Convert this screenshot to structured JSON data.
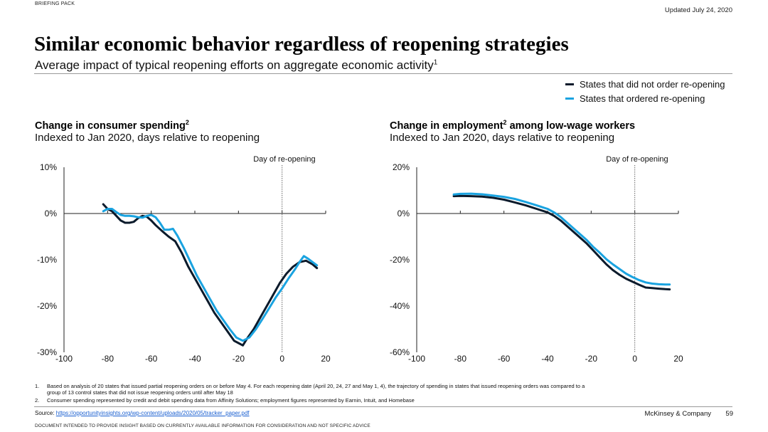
{
  "header": {
    "top_mark": "BRIEFING PACK",
    "updated": "Updated July 24, 2020",
    "title": "Similar economic behavior regardless of reopening strategies",
    "subtitle": "Average impact of typical reopening efforts on aggregate economic activity",
    "subtitle_note": "1"
  },
  "legend": {
    "items": [
      {
        "label": "States that did not order re-opening",
        "color": "#0b1a2b"
      },
      {
        "label": "States that ordered re-opening",
        "color": "#1aa3e0"
      }
    ]
  },
  "chart_data": [
    {
      "type": "line",
      "title": "Change in consumer spending",
      "title_note": "2",
      "subtitle": "Indexed to Jan 2020, days relative to reopening",
      "annotation": "Day of re-opening",
      "annotation_x": 0,
      "xlim": [
        -100,
        20
      ],
      "ylim": [
        -30,
        10
      ],
      "x_ticks": [
        -100,
        -80,
        -60,
        -40,
        -20,
        0,
        20
      ],
      "x_tick_labels": [
        "-100",
        "-80",
        "-60",
        "-40",
        "-20",
        "0",
        "20"
      ],
      "y_ticks": [
        10,
        0,
        -10,
        -20,
        -30
      ],
      "y_tick_labels": [
        "10%",
        "0%",
        "-10%",
        "-20%",
        "-30%"
      ],
      "series": [
        {
          "name": "States that did not order re-opening",
          "color": "#0b1a2b",
          "points": [
            [
              -82,
              2
            ],
            [
              -80,
              1
            ],
            [
              -78,
              0.5
            ],
            [
              -76,
              -0.5
            ],
            [
              -74,
              -1.5
            ],
            [
              -72,
              -2
            ],
            [
              -70,
              -2
            ],
            [
              -68,
              -1.8
            ],
            [
              -66,
              -1
            ],
            [
              -64,
              -0.5
            ],
            [
              -62,
              -0.7
            ],
            [
              -60,
              -1.5
            ],
            [
              -58,
              -2.5
            ],
            [
              -55,
              -3.8
            ],
            [
              -52,
              -5
            ],
            [
              -49,
              -6
            ],
            [
              -46,
              -8.5
            ],
            [
              -43,
              -11.5
            ],
            [
              -40,
              -14
            ],
            [
              -37,
              -16.5
            ],
            [
              -34,
              -19
            ],
            [
              -31,
              -21.5
            ],
            [
              -28,
              -23.5
            ],
            [
              -25,
              -25.5
            ],
            [
              -22,
              -27.5
            ],
            [
              -20,
              -28
            ],
            [
              -18,
              -28.5
            ],
            [
              -16,
              -27
            ],
            [
              -13,
              -25
            ],
            [
              -10,
              -22.5
            ],
            [
              -7,
              -20
            ],
            [
              -4,
              -17.5
            ],
            [
              -1,
              -15
            ],
            [
              2,
              -13
            ],
            [
              5,
              -11.5
            ],
            [
              8,
              -10.5
            ],
            [
              11,
              -10.2
            ],
            [
              14,
              -11
            ],
            [
              16,
              -11.8
            ]
          ]
        },
        {
          "name": "States that ordered re-opening",
          "color": "#1aa3e0",
          "points": [
            [
              -82,
              0.5
            ],
            [
              -80,
              1
            ],
            [
              -78,
              1
            ],
            [
              -76,
              0.3
            ],
            [
              -74,
              -0.3
            ],
            [
              -72,
              -0.5
            ],
            [
              -70,
              -0.5
            ],
            [
              -68,
              -0.6
            ],
            [
              -66,
              -0.8
            ],
            [
              -64,
              -0.9
            ],
            [
              -62,
              -0.5
            ],
            [
              -60,
              -0.3
            ],
            [
              -58,
              -0.8
            ],
            [
              -56,
              -2
            ],
            [
              -54,
              -3.5
            ],
            [
              -52,
              -3.5
            ],
            [
              -50,
              -3.3
            ],
            [
              -48,
              -4.8
            ],
            [
              -45,
              -7.5
            ],
            [
              -42,
              -10.5
            ],
            [
              -39,
              -13.5
            ],
            [
              -36,
              -16
            ],
            [
              -33,
              -18.5
            ],
            [
              -30,
              -21
            ],
            [
              -27,
              -23
            ],
            [
              -24,
              -25
            ],
            [
              -21,
              -26.8
            ],
            [
              -18,
              -27.5
            ],
            [
              -15,
              -26.8
            ],
            [
              -12,
              -25
            ],
            [
              -9,
              -22.8
            ],
            [
              -6,
              -20.5
            ],
            [
              -3,
              -18.2
            ],
            [
              0,
              -16.2
            ],
            [
              3,
              -14
            ],
            [
              6,
              -12
            ],
            [
              8,
              -10.5
            ],
            [
              10,
              -9.2
            ],
            [
              12,
              -9.8
            ],
            [
              14,
              -10.5
            ],
            [
              16,
              -11.2
            ]
          ]
        }
      ]
    },
    {
      "type": "line",
      "title": "Change in employment",
      "title_note": "2",
      "title_rest": " among low-wage workers",
      "subtitle": "Indexed to Jan 2020, days relative to reopening",
      "annotation": "Day of re-opening",
      "annotation_x": 0,
      "xlim": [
        -100,
        20
      ],
      "ylim": [
        -60,
        20
      ],
      "x_ticks": [
        -100,
        -80,
        -60,
        -40,
        -20,
        0,
        20
      ],
      "x_tick_labels": [
        "-100",
        "-80",
        "-60",
        "-40",
        "-20",
        "0",
        "20"
      ],
      "y_ticks": [
        20,
        0,
        -20,
        -40,
        -60
      ],
      "y_tick_labels": [
        "20%",
        "0%",
        "-20%",
        "-40%",
        "-60%"
      ],
      "series": [
        {
          "name": "States that did not order re-opening",
          "color": "#0b1a2b",
          "points": [
            [
              -83,
              7.5
            ],
            [
              -80,
              7.6
            ],
            [
              -75,
              7.5
            ],
            [
              -70,
              7.3
            ],
            [
              -65,
              6.8
            ],
            [
              -60,
              6
            ],
            [
              -55,
              4.8
            ],
            [
              -50,
              3.5
            ],
            [
              -45,
              2
            ],
            [
              -40,
              0.5
            ],
            [
              -37,
              -1
            ],
            [
              -34,
              -3
            ],
            [
              -31,
              -5.5
            ],
            [
              -28,
              -8
            ],
            [
              -25,
              -10.5
            ],
            [
              -22,
              -13
            ],
            [
              -19,
              -16
            ],
            [
              -16,
              -19
            ],
            [
              -13,
              -22
            ],
            [
              -10,
              -24.5
            ],
            [
              -7,
              -26.5
            ],
            [
              -4,
              -28.2
            ],
            [
              -1,
              -29.5
            ],
            [
              2,
              -30.8
            ],
            [
              5,
              -32
            ],
            [
              8,
              -32.2
            ],
            [
              11,
              -32.5
            ],
            [
              14,
              -32.7
            ],
            [
              16,
              -32.8
            ]
          ]
        },
        {
          "name": "States that ordered re-opening",
          "color": "#1aa3e0",
          "points": [
            [
              -83,
              8.2
            ],
            [
              -80,
              8.5
            ],
            [
              -75,
              8.6
            ],
            [
              -70,
              8.3
            ],
            [
              -65,
              7.8
            ],
            [
              -60,
              7.2
            ],
            [
              -55,
              6.3
            ],
            [
              -50,
              5
            ],
            [
              -45,
              3.5
            ],
            [
              -40,
              2
            ],
            [
              -37,
              0.5
            ],
            [
              -34,
              -1.5
            ],
            [
              -31,
              -4
            ],
            [
              -28,
              -6.5
            ],
            [
              -25,
              -9
            ],
            [
              -22,
              -11.5
            ],
            [
              -19,
              -14.5
            ],
            [
              -16,
              -17
            ],
            [
              -13,
              -19.8
            ],
            [
              -10,
              -22
            ],
            [
              -7,
              -24
            ],
            [
              -4,
              -26
            ],
            [
              -1,
              -27.5
            ],
            [
              2,
              -28.8
            ],
            [
              5,
              -29.8
            ],
            [
              8,
              -30.3
            ],
            [
              11,
              -30.6
            ],
            [
              14,
              -30.7
            ],
            [
              16,
              -30.7
            ]
          ]
        }
      ]
    }
  ],
  "footnotes": [
    {
      "num": "1.",
      "text": "Based on analysis of 20 states that issued partial reopening orders on or before May 4. For each reopening date (April 20, 24, 27 and May 1, 4), the trajectory of spending in states that issued reopening orders was compared to a"
    },
    {
      "num": "",
      "text": "group of 13 control states that did not issue reopening orders until after May 18"
    },
    {
      "num": "2.",
      "text": "Consumer spending represented by credit and debit spending data from Affinity Solutions; employment figures represented by Earnin, Intuit, and Homebase"
    }
  ],
  "footer": {
    "source_label": "Source: ",
    "source_link": "https://opportunityinsights.org/wp-content/uploads/2020/05/tracker_paper.pdf",
    "company": "McKinsey & Company",
    "page_number": "59",
    "disclaimer": "DOCUMENT INTENDED TO PROVIDE INSIGHT BASED ON CURRENTLY AVAILABLE INFORMATION FOR CONSIDERATION AND NOT SPECIFIC ADVICE"
  }
}
